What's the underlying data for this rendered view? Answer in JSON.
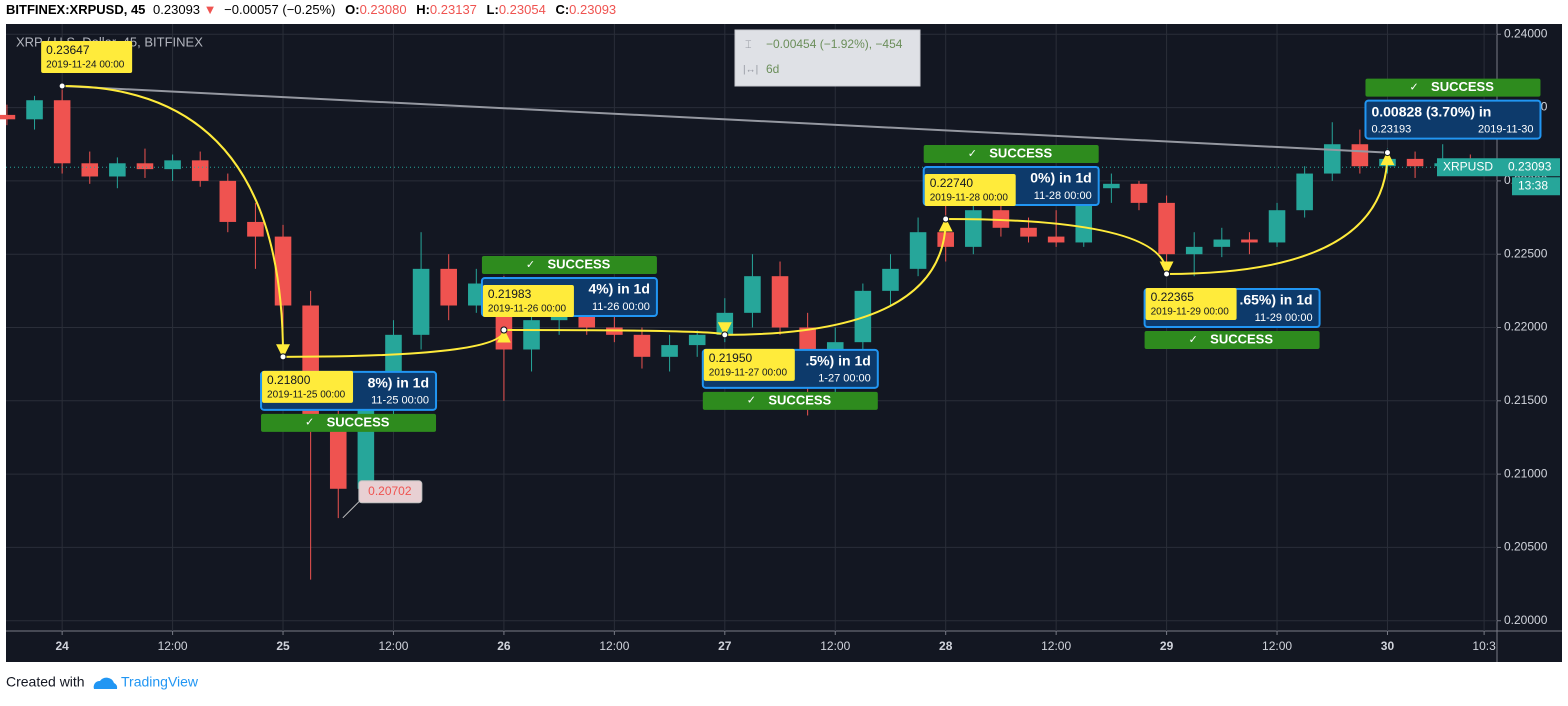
{
  "header": {
    "symbol": "BITFINEX:XRPUSD, 45",
    "last": "0.23093",
    "arrow": "▼",
    "change": "−0.00057 (−0.25%)",
    "ohlc": [
      {
        "k": "O:",
        "v": "0.23080"
      },
      {
        "k": "H:",
        "v": "0.23137"
      },
      {
        "k": "L:",
        "v": "0.23054"
      },
      {
        "k": "C:",
        "v": "0.23093"
      }
    ]
  },
  "chart_data": {
    "type": "candlestick",
    "watermark": "XRP / U.S. Dollar, 45, BITFINEX",
    "x": [
      -6,
      -3,
      0,
      3,
      6,
      9,
      12,
      15,
      18,
      21,
      24,
      27,
      30,
      33,
      36,
      39,
      42,
      45,
      48,
      51,
      54,
      57,
      60,
      63,
      66,
      69,
      72,
      75,
      78,
      81,
      84,
      87,
      90,
      93,
      96,
      99,
      102,
      105,
      108,
      111,
      114,
      117,
      120,
      123,
      126,
      129,
      132,
      135,
      138,
      141,
      144,
      147,
      150,
      153
    ],
    "open": [
      0.2345,
      0.2342,
      0.2355,
      0.2312,
      0.2303,
      0.2312,
      0.2308,
      0.2314,
      0.23,
      0.2272,
      0.2262,
      0.2215,
      0.214,
      0.209,
      0.215,
      0.2195,
      0.224,
      0.2215,
      0.223,
      0.2185,
      0.2205,
      0.2218,
      0.22,
      0.2195,
      0.218,
      0.2188,
      0.2195,
      0.221,
      0.2235,
      0.22,
      0.216,
      0.219,
      0.2225,
      0.224,
      0.2265,
      0.2255,
      0.228,
      0.2268,
      0.2262,
      0.2258,
      0.2295,
      0.2298,
      0.2285,
      0.225,
      0.2255,
      0.226,
      0.2258,
      0.228,
      0.2305,
      0.2325,
      0.231,
      0.2315,
      0.231,
      0.2312
    ],
    "high": [
      0.2352,
      0.2358,
      0.2365,
      0.232,
      0.2316,
      0.2322,
      0.2318,
      0.232,
      0.2305,
      0.2285,
      0.227,
      0.2225,
      0.215,
      0.216,
      0.2205,
      0.2265,
      0.225,
      0.224,
      0.2235,
      0.221,
      0.2225,
      0.223,
      0.221,
      0.22,
      0.2195,
      0.2198,
      0.222,
      0.225,
      0.2245,
      0.221,
      0.22,
      0.223,
      0.225,
      0.2275,
      0.2285,
      0.229,
      0.2285,
      0.2275,
      0.228,
      0.23,
      0.2305,
      0.23,
      0.229,
      0.2265,
      0.2268,
      0.2265,
      0.2285,
      0.231,
      0.234,
      0.2335,
      0.2322,
      0.232,
      0.2325,
      0.2318
    ],
    "low": [
      0.2338,
      0.2335,
      0.2305,
      0.2298,
      0.2295,
      0.2302,
      0.23,
      0.2296,
      0.2265,
      0.224,
      0.2195,
      0.2028,
      0.207,
      0.2085,
      0.214,
      0.2185,
      0.2205,
      0.221,
      0.215,
      0.217,
      0.2195,
      0.2195,
      0.219,
      0.2172,
      0.217,
      0.218,
      0.219,
      0.22,
      0.2195,
      0.214,
      0.2155,
      0.2185,
      0.2215,
      0.2235,
      0.2245,
      0.225,
      0.2262,
      0.2258,
      0.2255,
      0.2255,
      0.2285,
      0.228,
      0.2245,
      0.2235,
      0.2248,
      0.225,
      0.2255,
      0.2275,
      0.23,
      0.2305,
      0.2305,
      0.2302,
      0.2305,
      0.2305
    ],
    "close": [
      0.2342,
      0.2355,
      0.2312,
      0.2303,
      0.2312,
      0.2308,
      0.2314,
      0.23,
      0.2272,
      0.2262,
      0.2215,
      0.214,
      0.209,
      0.215,
      0.2195,
      0.224,
      0.2215,
      0.223,
      0.2185,
      0.2205,
      0.2218,
      0.22,
      0.2195,
      0.218,
      0.2188,
      0.2195,
      0.221,
      0.2235,
      0.22,
      0.216,
      0.219,
      0.2225,
      0.224,
      0.2265,
      0.2255,
      0.228,
      0.2268,
      0.2262,
      0.2258,
      0.2295,
      0.2298,
      0.2285,
      0.225,
      0.2255,
      0.226,
      0.2258,
      0.228,
      0.2305,
      0.2325,
      0.231,
      0.2315,
      0.231,
      0.2312,
      0.2309
    ],
    "up_color": "#26a69a",
    "down_color": "#ef5350",
    "xlim": [
      -6.1,
      155.9
    ],
    "ylim": [
      0.1993,
      0.2407
    ],
    "xticks": [
      {
        "value": 0,
        "label": "24"
      },
      {
        "value": 12,
        "label": "12:00"
      },
      {
        "value": 24,
        "label": "25"
      },
      {
        "value": 36,
        "label": "12:00"
      },
      {
        "value": 48,
        "label": "26"
      },
      {
        "value": 60,
        "label": "12:00"
      },
      {
        "value": 72,
        "label": "27"
      },
      {
        "value": 84,
        "label": "12:00"
      },
      {
        "value": 96,
        "label": "28"
      },
      {
        "value": 108,
        "label": "12:00"
      },
      {
        "value": 120,
        "label": "29"
      },
      {
        "value": 132,
        "label": "12:00"
      },
      {
        "value": 144,
        "label": "30"
      },
      {
        "value": 154.5,
        "label": "10:3"
      }
    ],
    "yticks": [
      {
        "value": 0.2,
        "label": "0.20000"
      },
      {
        "value": 0.205,
        "label": "0.20500"
      },
      {
        "value": 0.21,
        "label": "0.21000"
      },
      {
        "value": 0.215,
        "label": "0.21500"
      },
      {
        "value": 0.22,
        "label": "0.22000"
      },
      {
        "value": 0.225,
        "label": "0.22500"
      },
      {
        "value": 0.23,
        "label": "0.23000"
      },
      {
        "value": 0.235,
        "label": "0.23500"
      },
      {
        "value": 0.24,
        "label": "0.24000"
      }
    ],
    "grid": true,
    "last_price": {
      "name": "XRPUSD",
      "value": 0.23093,
      "label": "0.23093",
      "countdown": "13:38"
    },
    "low_label": {
      "x": 30.5,
      "value": 0.20702,
      "label": "0.20702"
    },
    "measure": {
      "text": "−0.00454 (−1.92%), −454",
      "span": "6d"
    },
    "trend_line": {
      "x": [
        0,
        144
      ],
      "values": [
        0.23647,
        0.23193
      ]
    },
    "points": [
      {
        "x": 0,
        "value": 0.23647,
        "label": "0.23647",
        "date": "2019-11-24 00:00"
      },
      {
        "x": 24,
        "value": 0.218,
        "label": "0.21800",
        "date": "2019-11-25 00:00"
      },
      {
        "x": 48,
        "value": 0.21983,
        "label": "0.21983",
        "date": "2019-11-26 00:00"
      },
      {
        "x": 72,
        "value": 0.2195,
        "label": "0.21950",
        "date": "2019-11-27 00:00"
      },
      {
        "x": 96,
        "value": 0.2274,
        "label": "0.22740",
        "date": "2019-11-28 00:00"
      },
      {
        "x": 120,
        "value": 0.22365,
        "label": "0.22365",
        "date": "2019-11-29 00:00"
      }
    ],
    "results": [
      {
        "text": "8%) in 1d",
        "date": "11-25  00:00",
        "status": "SUCCESS"
      },
      {
        "text": "4%) in 1d",
        "date": "11-26  00:00",
        "status": "SUCCESS"
      },
      {
        "text": ".5%) in 1d",
        "date": "1-27  00:00",
        "status": "SUCCESS"
      },
      {
        "text": "0%) in 1d",
        "date": "11-28  00:00",
        "status": "SUCCESS"
      },
      {
        "text": ".65%) in 1d",
        "date": "11-29  00:00",
        "status": "SUCCESS"
      },
      {
        "text": "0.00828 (3.70%) in",
        "date": "2019-11-30",
        "status": "SUCCESS",
        "target": {
          "x": 144,
          "value": 0.23193
        }
      }
    ]
  },
  "footer": {
    "text": "Created with",
    "brand": "TradingView"
  }
}
